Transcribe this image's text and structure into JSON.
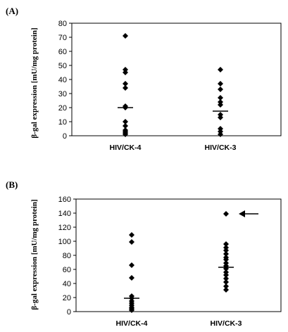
{
  "chart_data": [
    {
      "type": "scatter",
      "panel_label": "(A)",
      "title": "",
      "xlabel": "",
      "ylabel": "β-gal expression [mU/mg protein]",
      "categories": [
        "HIV/CK-4",
        "HIV/CK-3"
      ],
      "ylim": [
        0,
        80
      ],
      "yticks": [
        0,
        10,
        20,
        30,
        40,
        50,
        60,
        70,
        80
      ],
      "grid": false,
      "legend": "none",
      "series": [
        {
          "category": "HIV/CK-4",
          "values": [
            71,
            47,
            45,
            37,
            34,
            21,
            20,
            10,
            7,
            4,
            3,
            2,
            1
          ],
          "mean": 20
        },
        {
          "category": "HIV/CK-3",
          "values": [
            47,
            37,
            33,
            27,
            24,
            22,
            15,
            13,
            5,
            3,
            1
          ],
          "mean": 17.5
        }
      ]
    },
    {
      "type": "scatter",
      "panel_label": "(B)",
      "title": "",
      "xlabel": "",
      "ylabel": "β-gal expression [mU/mg protein]",
      "categories": [
        "HIV/CK-4",
        "HIV/CK-3"
      ],
      "ylim": [
        0,
        160
      ],
      "yticks": [
        0,
        20,
        40,
        60,
        80,
        100,
        120,
        140,
        160
      ],
      "grid": false,
      "legend": "none",
      "series": [
        {
          "category": "HIV/CK-4",
          "values": [
            109,
            99,
            66,
            48,
            22,
            19,
            15,
            12,
            9,
            6,
            4,
            2
          ],
          "mean": 19
        },
        {
          "category": "HIV/CK-3",
          "values": [
            139,
            96,
            91,
            87,
            82,
            77,
            74,
            69,
            65,
            61,
            56,
            52,
            47,
            42,
            36,
            31
          ],
          "mean": 63
        }
      ],
      "annotation": {
        "category": "HIV/CK-3",
        "value": 139,
        "kind": "arrow"
      }
    }
  ]
}
